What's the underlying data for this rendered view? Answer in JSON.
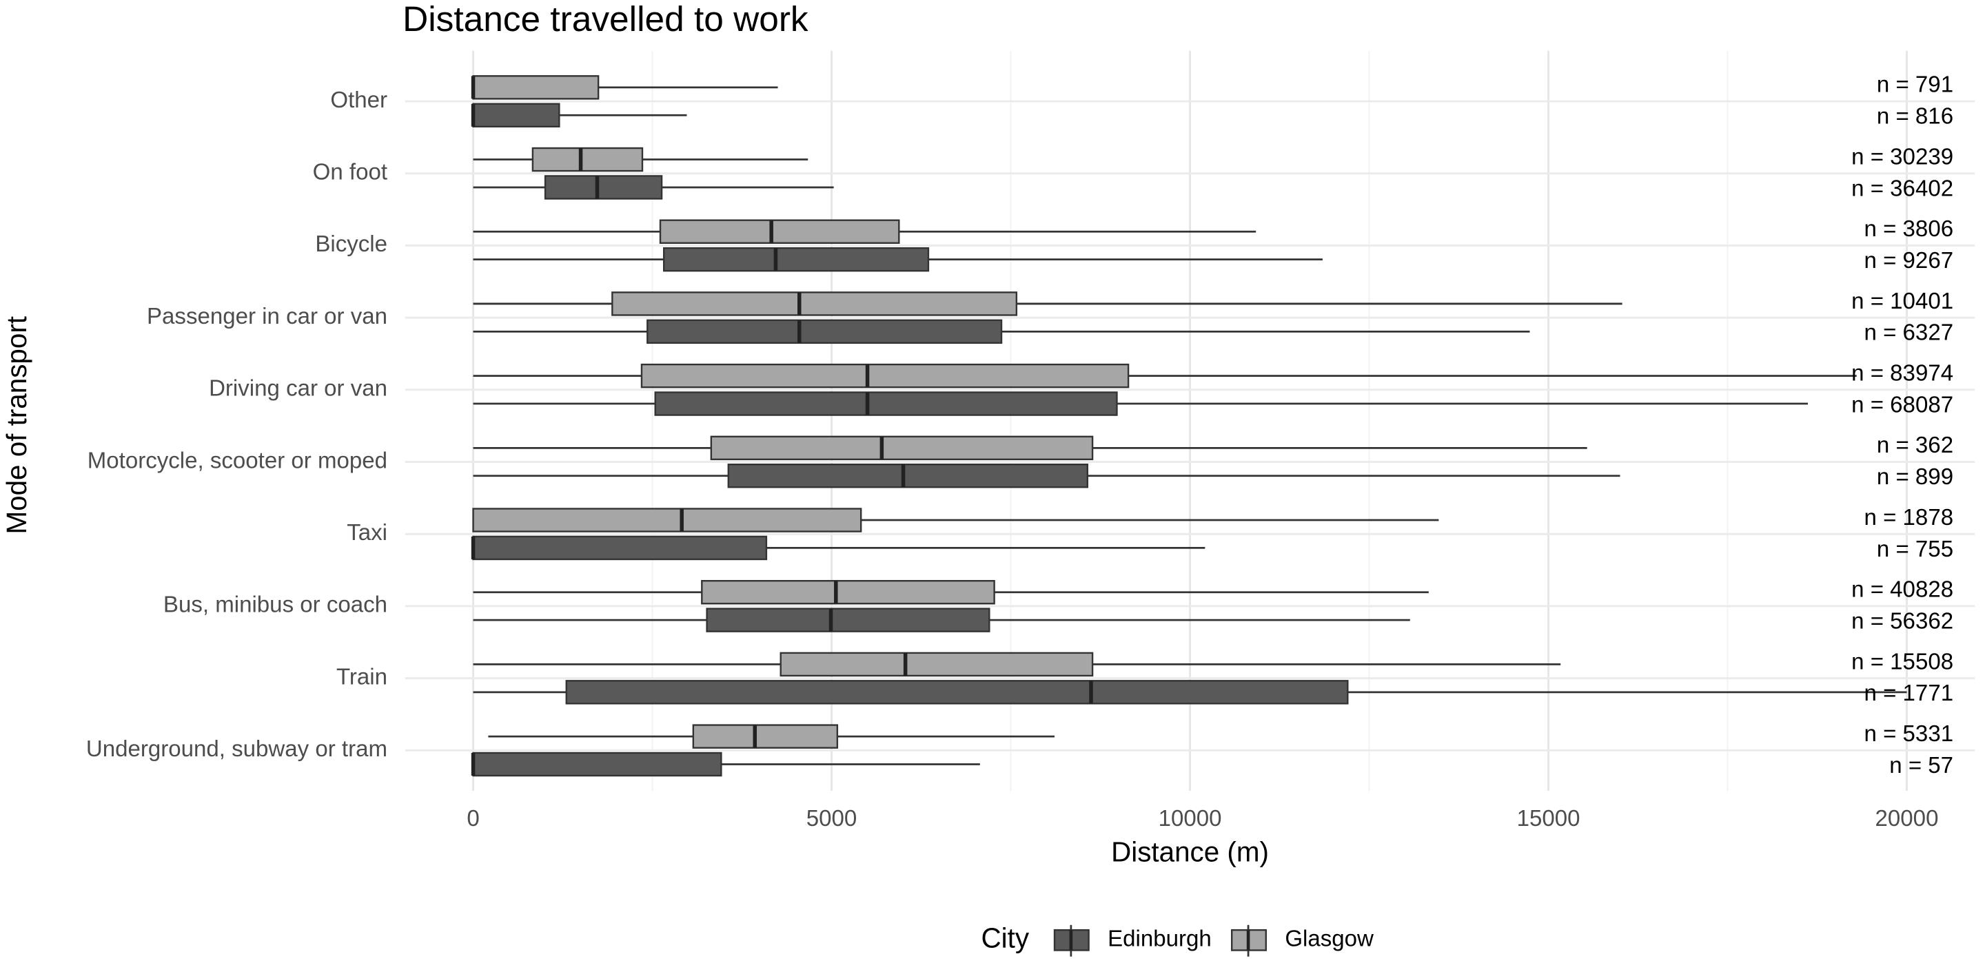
{
  "chart_data": {
    "type": "boxplot",
    "orientation": "horizontal",
    "title": "Distance travelled to work",
    "x_label": "Distance (m)",
    "y_label": "Mode of transport",
    "categories": [
      "Other",
      "On foot",
      "Bicycle",
      "Passenger in car or van",
      "Driving car or van",
      "Motorcycle, scooter or moped",
      "Taxi",
      "Bus, minibus or coach",
      "Train",
      "Underground, subway or tram"
    ],
    "xlim": [
      -950,
      20950
    ],
    "xticks": [
      0,
      5000,
      10000,
      15000,
      20000
    ],
    "grid": true,
    "legend_title": "City",
    "legend_position": "bottom",
    "series": [
      {
        "name": "Edinburgh",
        "color": "#595959",
        "whisker_low": [
          0,
          0,
          0,
          0,
          0,
          0,
          0,
          0,
          0,
          0
        ],
        "q1": [
          0,
          1005,
          2660,
          2430,
          2540,
          3560,
          0,
          3260,
          1300,
          0
        ],
        "median": [
          0,
          1730,
          4220,
          4550,
          5500,
          6000,
          0,
          4990,
          8620,
          0
        ],
        "q3": [
          1200,
          2630,
          6350,
          7370,
          8980,
          8570,
          4090,
          7200,
          12200,
          3460
        ],
        "whisker_high": [
          2980,
          5030,
          11850,
          14740,
          18620,
          16000,
          10210,
          13070,
          20000,
          7070
        ],
        "n": [
          816,
          36402,
          9267,
          6327,
          68087,
          899,
          755,
          56362,
          1771,
          57
        ],
        "n_labels": [
          "n =  816",
          "n =  36402",
          "n =  9267",
          "n =  6327",
          "n =  68087",
          "n =  899",
          "n =  755",
          "n =  56362",
          "n =  1771",
          "n =  57"
        ]
      },
      {
        "name": "Glasgow",
        "color": "#a6a6a6",
        "whisker_low": [
          0,
          0,
          0,
          0,
          0,
          0,
          0,
          0,
          0,
          210
        ],
        "q1": [
          0,
          830,
          2610,
          1940,
          2350,
          3320,
          0,
          3190,
          4290,
          3070
        ],
        "median": [
          0,
          1500,
          4160,
          4550,
          5500,
          5700,
          2910,
          5060,
          6030,
          3930
        ],
        "q3": [
          1746,
          2360,
          5940,
          7580,
          9140,
          8640,
          5410,
          7270,
          8640,
          5080
        ],
        "whisker_high": [
          4250,
          4670,
          10920,
          16030,
          19300,
          15540,
          13470,
          13330,
          15170,
          8110
        ],
        "n": [
          791,
          30239,
          3806,
          10401,
          83974,
          362,
          1878,
          40828,
          15508,
          5331
        ],
        "n_labels": [
          "n =  791",
          "n =  30239",
          "n =  3806",
          "n =  10401",
          "n =  83974",
          "n =  362",
          "n =  1878",
          "n =  40828",
          "n =  15508",
          "n =  5331"
        ]
      }
    ]
  }
}
